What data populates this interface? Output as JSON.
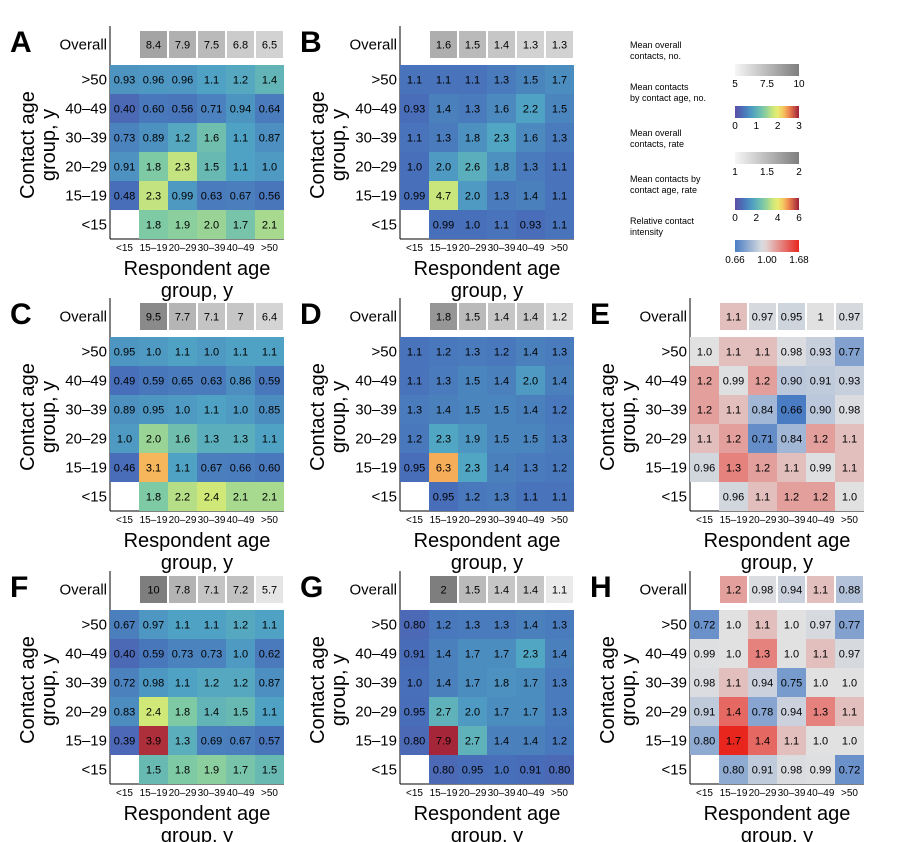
{
  "rows": [
    "Overall",
    ">50",
    "40–49",
    "30–39",
    "20–29",
    "15–19",
    "<15"
  ],
  "cols": [
    "<15",
    "15–19",
    "20–29",
    "30–39",
    "40–49",
    ">50"
  ],
  "y_axis_label": [
    "Contact age",
    "group, y"
  ],
  "x_axis_label": [
    "Respondent age",
    "group, y"
  ],
  "legend": [
    {
      "title": [
        "Mean overall",
        "contacts, no."
      ],
      "ticks": [
        "5",
        "7.5",
        "10"
      ],
      "scale": "gray"
    },
    {
      "title": [
        "Mean contacts",
        "by contact age, no."
      ],
      "ticks": [
        "0",
        "1",
        "2",
        "3"
      ],
      "scale": "spectral"
    },
    {
      "title": [
        "Mean overall",
        "contacts, rate"
      ],
      "ticks": [
        "1",
        "1.5",
        "2"
      ],
      "scale": "gray"
    },
    {
      "title": [
        "Mean contacts by",
        "contact age, rate"
      ],
      "ticks": [
        "0",
        "2",
        "4",
        "6"
      ],
      "scale": "spectral"
    },
    {
      "title": [
        "Relative contact",
        "intensity"
      ],
      "ticks": [
        "0.66",
        "1.00",
        "1.68"
      ],
      "scale": "diverging"
    }
  ],
  "chart_data": [
    {
      "panel": "A",
      "type": "heatmap",
      "scale": "count",
      "overall": [
        null,
        8.4,
        7.9,
        7.5,
        6.8,
        6.5
      ],
      "values": [
        [
          0.93,
          0.96,
          0.96,
          1.1,
          1.2,
          1.4
        ],
        [
          0.4,
          0.6,
          0.56,
          0.71,
          0.94,
          0.64
        ],
        [
          0.73,
          0.89,
          1.2,
          1.6,
          1.1,
          0.87
        ],
        [
          0.91,
          1.8,
          2.3,
          1.5,
          1.1,
          1.0
        ],
        [
          0.48,
          2.3,
          0.99,
          0.63,
          0.67,
          0.56
        ],
        [
          null,
          1.8,
          1.9,
          2.0,
          1.7,
          2.1
        ]
      ],
      "labels": [
        [
          "0.93",
          "0.96",
          "0.96",
          "1.1",
          "1.2",
          "1.4"
        ],
        [
          "0.40",
          "0.60",
          "0.56",
          "0.71",
          "0.94",
          "0.64"
        ],
        [
          "0.73",
          "0.89",
          "1.2",
          "1.6",
          "1.1",
          "0.87"
        ],
        [
          "0.91",
          "1.8",
          "2.3",
          "1.5",
          "1.1",
          "1.0"
        ],
        [
          "0.48",
          "2.3",
          "0.99",
          "0.63",
          "0.67",
          "0.56"
        ],
        [
          "",
          "1.8",
          "1.9",
          "2.0",
          "1.7",
          "2.1"
        ]
      ]
    },
    {
      "panel": "B",
      "type": "heatmap",
      "scale": "rate",
      "overall": [
        null,
        1.6,
        1.5,
        1.4,
        1.3,
        1.3
      ],
      "values": [
        [
          1.1,
          1.1,
          1.1,
          1.3,
          1.5,
          1.7
        ],
        [
          0.93,
          1.4,
          1.3,
          1.6,
          2.2,
          1.5
        ],
        [
          1.1,
          1.3,
          1.8,
          2.3,
          1.6,
          1.3
        ],
        [
          1.0,
          2.0,
          2.6,
          1.8,
          1.3,
          1.1
        ],
        [
          0.99,
          4.7,
          2.0,
          1.3,
          1.4,
          1.1
        ],
        [
          null,
          0.99,
          1.0,
          1.1,
          0.93,
          1.1
        ]
      ],
      "labels": [
        [
          "1.1",
          "1.1",
          "1.1",
          "1.3",
          "1.5",
          "1.7"
        ],
        [
          "0.93",
          "1.4",
          "1.3",
          "1.6",
          "2.2",
          "1.5"
        ],
        [
          "1.1",
          "1.3",
          "1.8",
          "2.3",
          "1.6",
          "1.3"
        ],
        [
          "1.0",
          "2.0",
          "2.6",
          "1.8",
          "1.3",
          "1.1"
        ],
        [
          "0.99",
          "4.7",
          "2.0",
          "1.3",
          "1.4",
          "1.1"
        ],
        [
          "",
          "0.99",
          "1.0",
          "1.1",
          "0.93",
          "1.1"
        ]
      ]
    },
    {
      "panel": "C",
      "type": "heatmap",
      "scale": "count",
      "overall": [
        null,
        9.5,
        7.7,
        7.1,
        7.0,
        6.4
      ],
      "values": [
        [
          0.95,
          1.0,
          1.1,
          1.0,
          1.1,
          1.1
        ],
        [
          0.49,
          0.59,
          0.65,
          0.63,
          0.86,
          0.59
        ],
        [
          0.89,
          0.95,
          1.0,
          1.1,
          1.0,
          0.85
        ],
        [
          1.0,
          2.0,
          1.6,
          1.3,
          1.3,
          1.1
        ],
        [
          0.46,
          3.1,
          1.1,
          0.67,
          0.66,
          0.6
        ],
        [
          null,
          1.8,
          2.2,
          2.4,
          2.1,
          2.1
        ]
      ],
      "labels": [
        [
          "0.95",
          "1.0",
          "1.1",
          "1.0",
          "1.1",
          "1.1"
        ],
        [
          "0.49",
          "0.59",
          "0.65",
          "0.63",
          "0.86",
          "0.59"
        ],
        [
          "0.89",
          "0.95",
          "1.0",
          "1.1",
          "1.0",
          "0.85"
        ],
        [
          "1.0",
          "2.0",
          "1.6",
          "1.3",
          "1.3",
          "1.1"
        ],
        [
          "0.46",
          "3.1",
          "1.1",
          "0.67",
          "0.66",
          "0.60"
        ],
        [
          "",
          "1.8",
          "2.2",
          "2.4",
          "2.1",
          "2.1"
        ]
      ]
    },
    {
      "panel": "D",
      "type": "heatmap",
      "scale": "rate",
      "overall": [
        null,
        1.8,
        1.5,
        1.4,
        1.4,
        1.2
      ],
      "values": [
        [
          1.1,
          1.2,
          1.3,
          1.2,
          1.4,
          1.3
        ],
        [
          1.1,
          1.3,
          1.5,
          1.4,
          2.0,
          1.4
        ],
        [
          1.3,
          1.4,
          1.5,
          1.5,
          1.4,
          1.2
        ],
        [
          1.2,
          2.3,
          1.9,
          1.5,
          1.5,
          1.3
        ],
        [
          0.95,
          6.3,
          2.3,
          1.4,
          1.3,
          1.2
        ],
        [
          null,
          0.95,
          1.2,
          1.3,
          1.1,
          1.1
        ]
      ],
      "labels": [
        [
          "1.1",
          "1.2",
          "1.3",
          "1.2",
          "1.4",
          "1.3"
        ],
        [
          "1.1",
          "1.3",
          "1.5",
          "1.4",
          "2.0",
          "1.4"
        ],
        [
          "1.3",
          "1.4",
          "1.5",
          "1.5",
          "1.4",
          "1.2"
        ],
        [
          "1.2",
          "2.3",
          "1.9",
          "1.5",
          "1.5",
          "1.3"
        ],
        [
          "0.95",
          "6.3",
          "2.3",
          "1.4",
          "1.3",
          "1.2"
        ],
        [
          "",
          "0.95",
          "1.2",
          "1.3",
          "1.1",
          "1.1"
        ]
      ]
    },
    {
      "panel": "E",
      "type": "heatmap",
      "scale": "relative",
      "overall": [
        null,
        1.1,
        0.97,
        0.95,
        1.0,
        0.97
      ],
      "values": [
        [
          1.0,
          1.1,
          1.1,
          0.98,
          0.93,
          0.77
        ],
        [
          1.2,
          0.99,
          1.2,
          0.9,
          0.91,
          0.93
        ],
        [
          1.2,
          1.1,
          0.84,
          0.66,
          0.9,
          0.98
        ],
        [
          1.1,
          1.2,
          0.71,
          0.84,
          1.2,
          1.1
        ],
        [
          0.96,
          1.3,
          1.2,
          1.1,
          0.99,
          1.1
        ],
        [
          null,
          0.96,
          1.1,
          1.2,
          1.2,
          1.0
        ]
      ],
      "labels": [
        [
          "1.0",
          "1.1",
          "1.1",
          "0.98",
          "0.93",
          "0.77"
        ],
        [
          "1.2",
          "0.99",
          "1.2",
          "0.90",
          "0.91",
          "0.93"
        ],
        [
          "1.2",
          "1.1",
          "0.84",
          "0.66",
          "0.90",
          "0.98"
        ],
        [
          "1.1",
          "1.2",
          "0.71",
          "0.84",
          "1.2",
          "1.1"
        ],
        [
          "0.96",
          "1.3",
          "1.2",
          "1.1",
          "0.99",
          "1.1"
        ],
        [
          "",
          "0.96",
          "1.1",
          "1.2",
          "1.2",
          "1.0"
        ]
      ]
    },
    {
      "panel": "F",
      "type": "heatmap",
      "scale": "count",
      "overall": [
        null,
        10,
        7.8,
        7.1,
        7.2,
        5.7
      ],
      "values": [
        [
          0.67,
          0.97,
          1.1,
          1.1,
          1.2,
          1.1
        ],
        [
          0.4,
          0.59,
          0.73,
          0.73,
          1.0,
          0.62
        ],
        [
          0.72,
          0.98,
          1.1,
          1.2,
          1.2,
          0.87
        ],
        [
          0.83,
          2.4,
          1.8,
          1.4,
          1.5,
          1.1
        ],
        [
          0.39,
          3.9,
          1.3,
          0.69,
          0.67,
          0.57
        ],
        [
          null,
          1.5,
          1.8,
          1.9,
          1.7,
          1.5
        ]
      ],
      "labels": [
        [
          "0.67",
          "0.97",
          "1.1",
          "1.1",
          "1.2",
          "1.1"
        ],
        [
          "0.40",
          "0.59",
          "0.73",
          "0.73",
          "1.0",
          "0.62"
        ],
        [
          "0.72",
          "0.98",
          "1.1",
          "1.2",
          "1.2",
          "0.87"
        ],
        [
          "0.83",
          "2.4",
          "1.8",
          "1.4",
          "1.5",
          "1.1"
        ],
        [
          "0.39",
          "3.9",
          "1.3",
          "0.69",
          "0.67",
          "0.57"
        ],
        [
          "",
          "1.5",
          "1.8",
          "1.9",
          "1.7",
          "1.5"
        ]
      ]
    },
    {
      "panel": "G",
      "type": "heatmap",
      "scale": "rate",
      "overall": [
        null,
        2.0,
        1.5,
        1.4,
        1.4,
        1.1
      ],
      "values": [
        [
          0.8,
          1.2,
          1.3,
          1.3,
          1.4,
          1.3
        ],
        [
          0.91,
          1.4,
          1.7,
          1.7,
          2.3,
          1.4
        ],
        [
          1.0,
          1.4,
          1.7,
          1.8,
          1.7,
          1.3
        ],
        [
          0.95,
          2.7,
          2.0,
          1.7,
          1.7,
          1.3
        ],
        [
          0.8,
          7.9,
          2.7,
          1.4,
          1.4,
          1.2
        ],
        [
          null,
          0.8,
          0.95,
          1.0,
          0.91,
          0.8
        ]
      ],
      "labels": [
        [
          "0.80",
          "1.2",
          "1.3",
          "1.3",
          "1.4",
          "1.3"
        ],
        [
          "0.91",
          "1.4",
          "1.7",
          "1.7",
          "2.3",
          "1.4"
        ],
        [
          "1.0",
          "1.4",
          "1.7",
          "1.8",
          "1.7",
          "1.3"
        ],
        [
          "0.95",
          "2.7",
          "2.0",
          "1.7",
          "1.7",
          "1.3"
        ],
        [
          "0.80",
          "7.9",
          "2.7",
          "1.4",
          "1.4",
          "1.2"
        ],
        [
          "",
          "0.80",
          "0.95",
          "1.0",
          "0.91",
          "0.80"
        ]
      ]
    },
    {
      "panel": "H",
      "type": "heatmap",
      "scale": "relative",
      "overall": [
        null,
        1.2,
        0.98,
        0.94,
        1.1,
        0.88
      ],
      "values": [
        [
          0.72,
          1.0,
          1.1,
          1.0,
          0.97,
          0.77
        ],
        [
          0.99,
          1.0,
          1.3,
          1.0,
          1.1,
          0.97
        ],
        [
          0.98,
          1.1,
          0.94,
          0.75,
          1.0,
          1.0
        ],
        [
          0.91,
          1.4,
          0.78,
          0.94,
          1.3,
          1.1
        ],
        [
          0.8,
          1.7,
          1.4,
          1.1,
          1.0,
          1.0
        ],
        [
          null,
          0.8,
          0.91,
          0.98,
          0.99,
          0.72
        ]
      ],
      "labels": [
        [
          "0.72",
          "1.0",
          "1.1",
          "1.0",
          "0.97",
          "0.77"
        ],
        [
          "0.99",
          "1.0",
          "1.3",
          "1.0",
          "1.1",
          "0.97"
        ],
        [
          "0.98",
          "1.1",
          "0.94",
          "0.75",
          "1.0",
          "1.0"
        ],
        [
          "0.91",
          "1.4",
          "0.78",
          "0.94",
          "1.3",
          "1.1"
        ],
        [
          "0.80",
          "1.7",
          "1.4",
          "1.1",
          "1.0",
          "1.0"
        ],
        [
          "",
          "0.80",
          "0.91",
          "0.98",
          "0.99",
          "0.72"
        ]
      ]
    }
  ]
}
